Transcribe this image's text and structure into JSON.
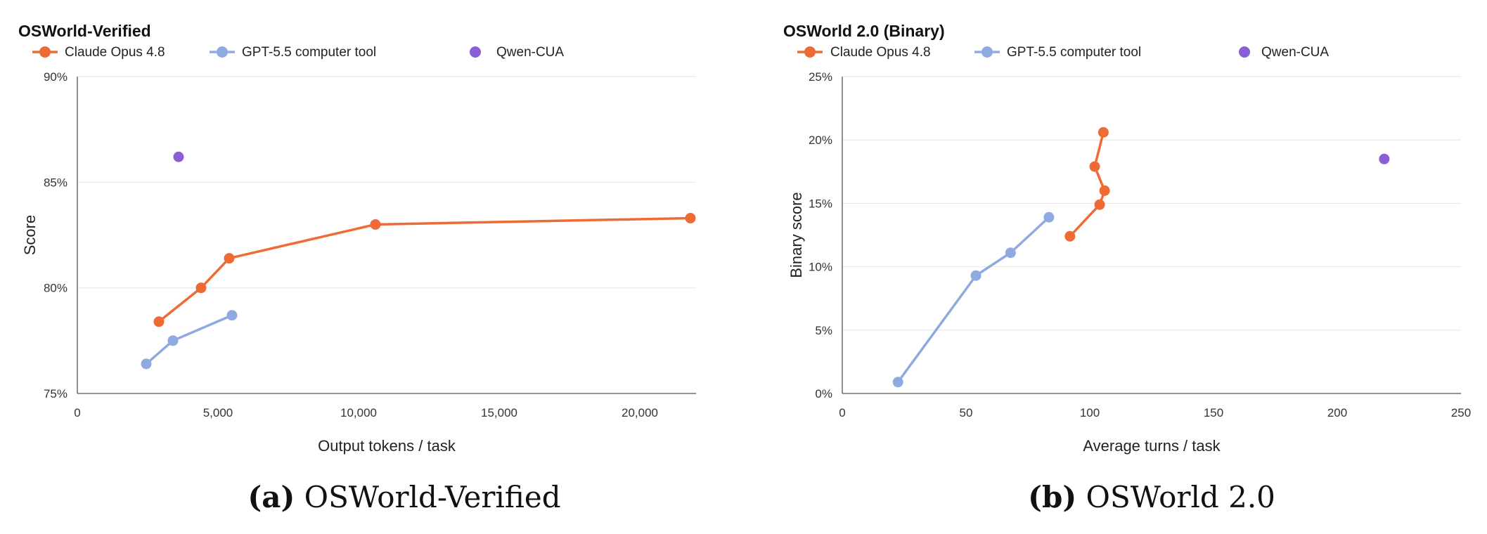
{
  "colors": {
    "claude": "#ee6b35",
    "gpt": "#8eaade",
    "qwen": "#8a5fd6"
  },
  "chart_data": [
    {
      "type": "line",
      "title": "OSWorld-Verified",
      "xlabel": "Output tokens / task",
      "ylabel": "Score",
      "xlim": [
        0,
        22000
      ],
      "ylim": [
        75,
        90
      ],
      "xticks": [
        0,
        5000,
        10000,
        15000,
        20000
      ],
      "xtick_labels": [
        "0",
        "5,000",
        "10,000",
        "15,000",
        "20,000"
      ],
      "yticks": [
        75,
        80,
        85,
        90
      ],
      "ytick_labels": [
        "75%",
        "80%",
        "85%",
        "90%"
      ],
      "legend": "top-left",
      "grid": true,
      "caption": {
        "label": "(a)",
        "text": " OSWorld-Verified"
      },
      "series": [
        {
          "name": "Claude Opus 4.8",
          "color_key": "claude",
          "style": "line",
          "x": [
            2900,
            4400,
            5400,
            10600,
            21800
          ],
          "y": [
            78.4,
            80.0,
            81.4,
            83.0,
            83.3
          ]
        },
        {
          "name": "GPT-5.5 computer tool",
          "color_key": "gpt",
          "style": "line",
          "x": [
            2450,
            3400,
            5500
          ],
          "y": [
            76.4,
            77.5,
            78.7
          ]
        },
        {
          "name": "Qwen-CUA",
          "color_key": "qwen",
          "style": "point",
          "x": [
            3600
          ],
          "y": [
            86.2
          ]
        }
      ]
    },
    {
      "type": "line",
      "title": "OSWorld 2.0 (Binary)",
      "xlabel": "Average turns / task",
      "ylabel": "Binary score",
      "xlim": [
        0,
        250
      ],
      "ylim": [
        0,
        25
      ],
      "xticks": [
        0,
        50,
        100,
        150,
        200,
        250
      ],
      "xtick_labels": [
        "0",
        "50",
        "100",
        "150",
        "200",
        "250"
      ],
      "yticks": [
        0,
        5,
        10,
        15,
        20,
        25
      ],
      "ytick_labels": [
        "0%",
        "5%",
        "10%",
        "15%",
        "20%",
        "25%"
      ],
      "legend": "top-left",
      "grid": true,
      "caption": {
        "label": "(b)",
        "text": " OSWorld 2.0"
      },
      "series": [
        {
          "name": "Claude Opus 4.8",
          "color_key": "claude",
          "style": "line",
          "x": [
            92,
            104,
            106,
            102,
            105.5
          ],
          "y": [
            12.4,
            14.9,
            16.0,
            17.9,
            20.6
          ]
        },
        {
          "name": "GPT-5.5 computer tool",
          "color_key": "gpt",
          "style": "line",
          "x": [
            22.5,
            54,
            68,
            83.5
          ],
          "y": [
            0.9,
            9.3,
            11.1,
            13.9
          ]
        },
        {
          "name": "Qwen-CUA",
          "color_key": "qwen",
          "style": "point",
          "x": [
            219
          ],
          "y": [
            18.5
          ]
        }
      ]
    }
  ]
}
